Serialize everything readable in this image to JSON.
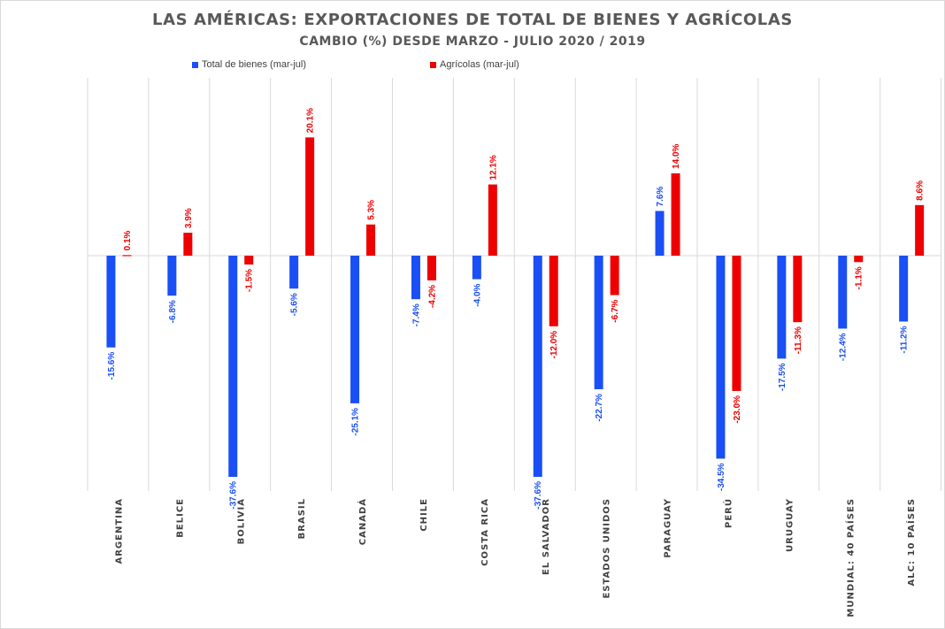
{
  "chart_data": {
    "type": "bar",
    "title": "LAS AMÉRICAS: EXPORTACIONES DE TOTAL DE BIENES Y AGRÍCOLAS",
    "subtitle": "CAMBIO (%) DESDE MARZO - JULIO 2020 / 2019",
    "categories": [
      "ARGENTINA",
      "BELICE",
      "BOLIVIA",
      "BRASIL",
      "CANADÁ",
      "CHILE",
      "COSTA RICA",
      "EL SALVADOR",
      "ESTADOS UNIDOS",
      "PARAGUAY",
      "PERÚ",
      "URUGUAY",
      "MUNDIAL: 40 PAÍSES",
      "ALC: 10 PAÍSES"
    ],
    "series": [
      {
        "name": "Total de bienes (mar-jul)",
        "color": "#1a4ff5",
        "values": [
          -15.6,
          -6.8,
          -37.6,
          -5.6,
          -25.1,
          -7.4,
          -4.0,
          -37.6,
          -22.7,
          7.6,
          -34.5,
          -17.5,
          -12.4,
          -11.2
        ],
        "labels": [
          "-15.6%",
          "-6.8%",
          "-37.6%",
          "-5.6%",
          "-25.1%",
          "-7.4%",
          "-4.0%",
          "-37.6%",
          "-22.7%",
          "7.6%",
          "-34.5%",
          "-17.5%",
          "-12.4%",
          "-11.2%"
        ]
      },
      {
        "name": "Agrícolas (mar-jul)",
        "color": "#ee0000",
        "values": [
          0.1,
          3.9,
          -1.5,
          20.1,
          5.3,
          -4.2,
          12.1,
          -12.0,
          -6.7,
          14.0,
          -23.0,
          -11.3,
          -1.1,
          8.6
        ],
        "labels": [
          "0.1%",
          "3.9%",
          "-1.5%",
          "20.1%",
          "5.3%",
          "-4.2%",
          "12.1%",
          "-12.0%",
          "-6.7%",
          "14.0%",
          "-23.0%",
          "-11.3%",
          "-1.1%",
          "8.6%"
        ]
      }
    ],
    "legend_position": "top-center",
    "grid": "vertical"
  }
}
